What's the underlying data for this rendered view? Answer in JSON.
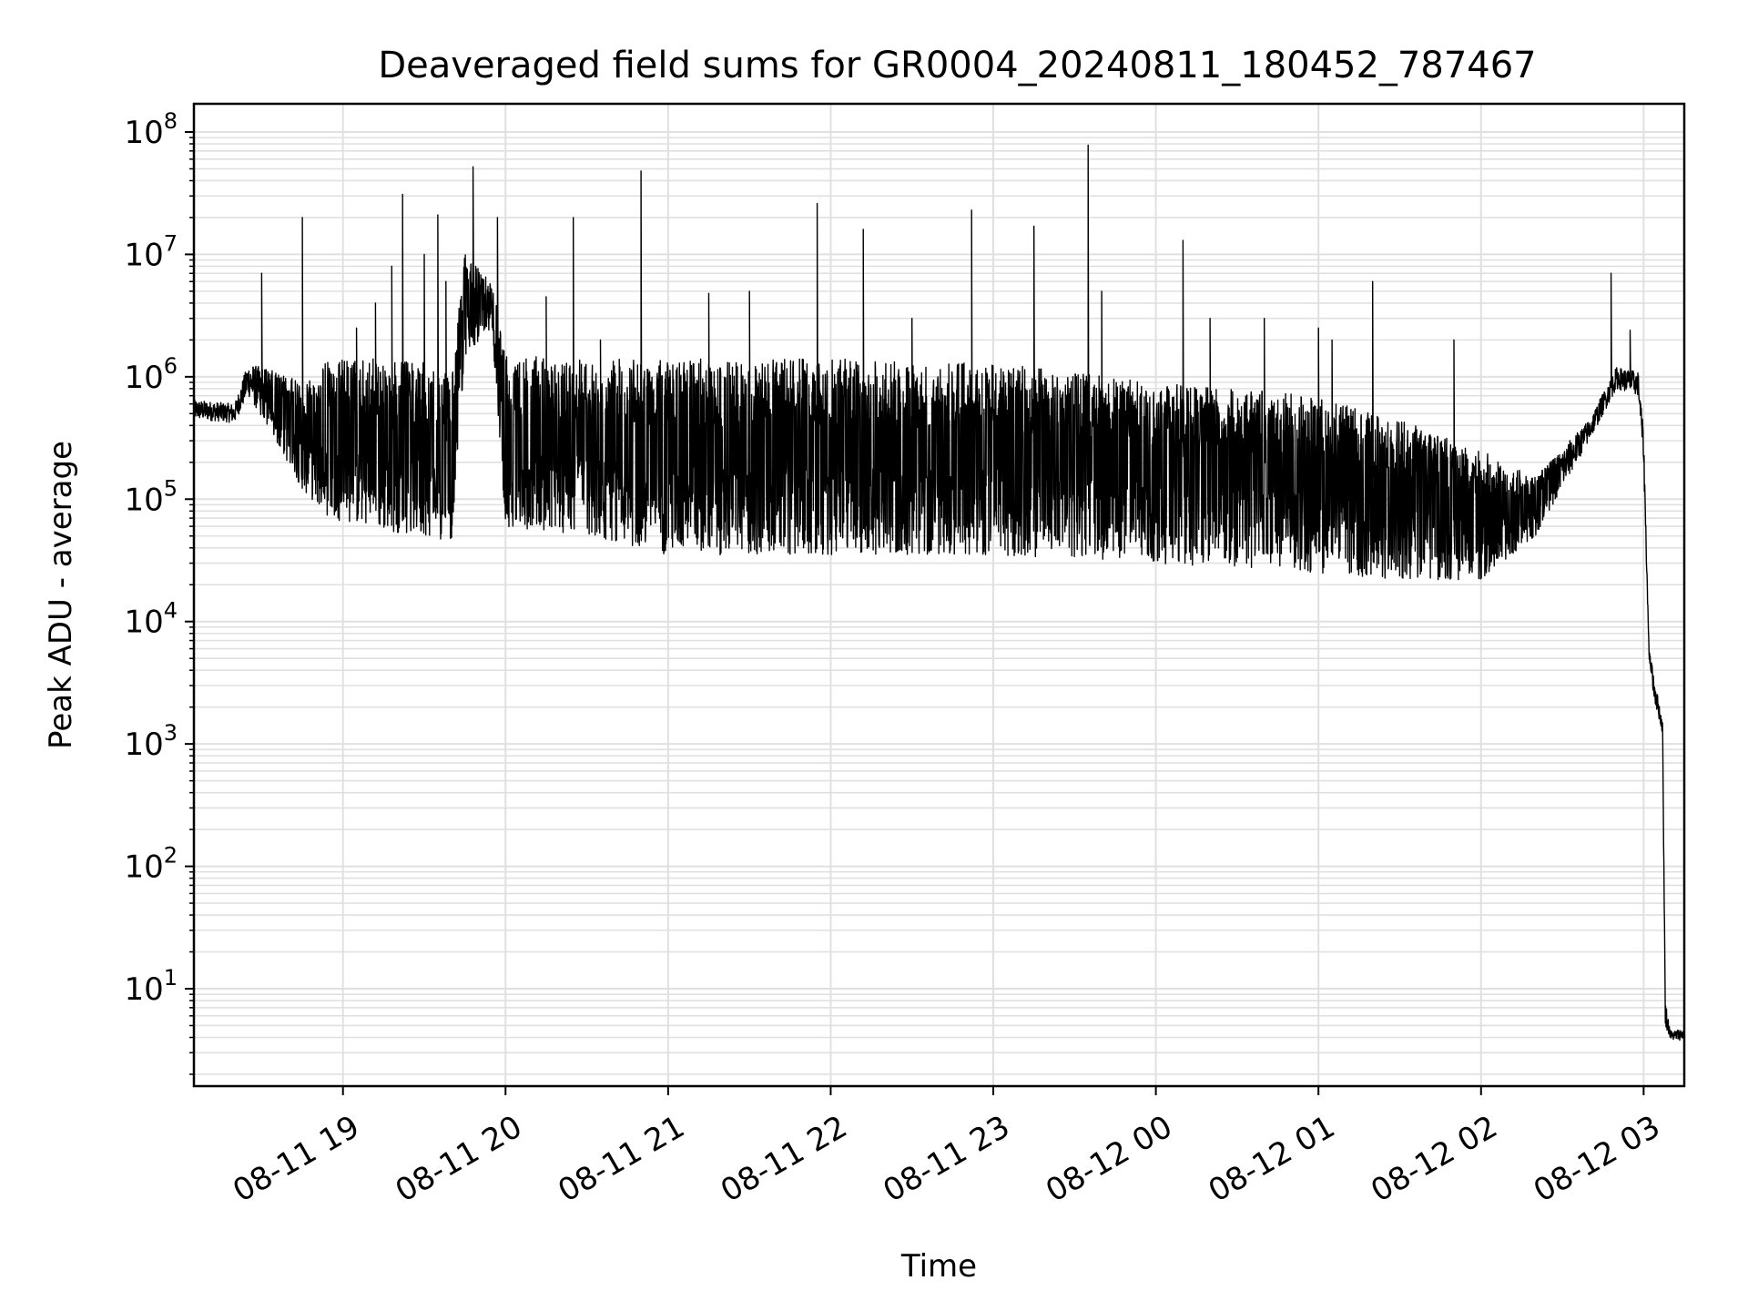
{
  "chart_data": {
    "type": "line",
    "title": "Deaveraged field sums for GR0004_20240811_180452_787467",
    "xlabel": "Time",
    "ylabel": "Peak ADU - average",
    "y_scale": "log",
    "grid": true,
    "line_color": "#000000",
    "grid_color": "#e0e0e0",
    "xlim": [
      "2024-08-11 18:05",
      "2024-08-12 03:15"
    ],
    "ylim": [
      1.6,
      170000000
    ],
    "x_ticks": [
      {
        "value": "2024-08-11 19:00",
        "label": "08-11 19"
      },
      {
        "value": "2024-08-11 20:00",
        "label": "08-11 20"
      },
      {
        "value": "2024-08-11 21:00",
        "label": "08-11 21"
      },
      {
        "value": "2024-08-11 22:00",
        "label": "08-11 22"
      },
      {
        "value": "2024-08-11 23:00",
        "label": "08-11 23"
      },
      {
        "value": "2024-08-12 00:00",
        "label": "08-12 00"
      },
      {
        "value": "2024-08-12 01:00",
        "label": "08-12 01"
      },
      {
        "value": "2024-08-12 02:00",
        "label": "08-12 02"
      },
      {
        "value": "2024-08-12 03:00",
        "label": "08-12 03"
      }
    ],
    "y_ticks": [
      {
        "value": 10,
        "base": "10",
        "exp": "1"
      },
      {
        "value": 100,
        "base": "10",
        "exp": "2"
      },
      {
        "value": 1000,
        "base": "10",
        "exp": "3"
      },
      {
        "value": 10000,
        "base": "10",
        "exp": "4"
      },
      {
        "value": 100000,
        "base": "10",
        "exp": "5"
      },
      {
        "value": 1000000,
        "base": "10",
        "exp": "6"
      },
      {
        "value": 10000000,
        "base": "10",
        "exp": "7"
      },
      {
        "value": 100000000,
        "base": "10",
        "exp": "8"
      }
    ],
    "series": [
      {
        "envelope": [
          {
            "x": "2024-08-11 18:05",
            "low": 450000,
            "high": 650000
          },
          {
            "x": "2024-08-11 18:20",
            "low": 420000,
            "high": 600000
          },
          {
            "x": "2024-08-11 18:25",
            "low": 700000,
            "high": 1300000
          },
          {
            "x": "2024-08-11 18:35",
            "low": 300000,
            "high": 1100000
          },
          {
            "x": "2024-08-11 18:45",
            "low": 120000,
            "high": 900000
          },
          {
            "x": "2024-08-11 18:55",
            "low": 70000,
            "high": 1400000
          },
          {
            "x": "2024-08-11 19:15",
            "low": 55000,
            "high": 1400000
          },
          {
            "x": "2024-08-11 19:30",
            "low": 50000,
            "high": 1300000
          },
          {
            "x": "2024-08-11 19:40",
            "low": 45000,
            "high": 1000000
          },
          {
            "x": "2024-08-11 19:45",
            "low": 1500000,
            "high": 10000000
          },
          {
            "x": "2024-08-11 19:55",
            "low": 2500000,
            "high": 6000000
          },
          {
            "x": "2024-08-11 20:00",
            "low": 60000,
            "high": 1500000
          },
          {
            "x": "2024-08-11 20:30",
            "low": 50000,
            "high": 1400000
          },
          {
            "x": "2024-08-11 21:00",
            "low": 35000,
            "high": 1400000
          },
          {
            "x": "2024-08-11 22:00",
            "low": 35000,
            "high": 1400000
          },
          {
            "x": "2024-08-11 23:00",
            "low": 35000,
            "high": 1300000
          },
          {
            "x": "2024-08-12 00:00",
            "low": 30000,
            "high": 900000
          },
          {
            "x": "2024-08-12 01:00",
            "low": 25000,
            "high": 700000
          },
          {
            "x": "2024-08-12 01:30",
            "low": 22000,
            "high": 450000
          },
          {
            "x": "2024-08-12 02:00",
            "low": 22000,
            "high": 250000
          },
          {
            "x": "2024-08-12 02:20",
            "low": 50000,
            "high": 150000
          },
          {
            "x": "2024-08-12 02:40",
            "low": 300000,
            "high": 450000
          },
          {
            "x": "2024-08-12 02:50",
            "low": 800000,
            "high": 1200000
          },
          {
            "x": "2024-08-12 02:58",
            "low": 700000,
            "high": 1100000
          },
          {
            "x": "2024-08-12 03:00",
            "low": 200000,
            "high": 350000
          },
          {
            "x": "2024-08-12 03:02",
            "low": 5000,
            "high": 6000
          },
          {
            "x": "2024-08-12 03:04",
            "low": 2200,
            "high": 3500
          },
          {
            "x": "2024-08-12 03:06",
            "low": 1500,
            "high": 2000
          },
          {
            "x": "2024-08-12 03:07",
            "low": 1200,
            "high": 1500
          },
          {
            "x": "2024-08-12 03:08",
            "low": 5,
            "high": 8
          },
          {
            "x": "2024-08-12 03:10",
            "low": 3.8,
            "high": 4.5
          },
          {
            "x": "2024-08-12 03:15",
            "low": 3.8,
            "high": 4.8
          }
        ],
        "spikes": [
          {
            "x": "2024-08-11 18:30",
            "y": 7000000
          },
          {
            "x": "2024-08-11 18:45",
            "y": 20000000
          },
          {
            "x": "2024-08-11 19:05",
            "y": 2500000
          },
          {
            "x": "2024-08-11 19:12",
            "y": 4000000
          },
          {
            "x": "2024-08-11 19:18",
            "y": 8000000
          },
          {
            "x": "2024-08-11 19:22",
            "y": 31000000
          },
          {
            "x": "2024-08-11 19:30",
            "y": 10000000
          },
          {
            "x": "2024-08-11 19:35",
            "y": 21000000
          },
          {
            "x": "2024-08-11 19:38",
            "y": 6000000
          },
          {
            "x": "2024-08-11 19:48",
            "y": 52000000
          },
          {
            "x": "2024-08-11 19:57",
            "y": 20000000
          },
          {
            "x": "2024-08-11 20:15",
            "y": 4500000
          },
          {
            "x": "2024-08-11 20:25",
            "y": 20000000
          },
          {
            "x": "2024-08-11 20:35",
            "y": 2000000
          },
          {
            "x": "2024-08-11 20:50",
            "y": 48000000
          },
          {
            "x": "2024-08-11 21:15",
            "y": 4800000
          },
          {
            "x": "2024-08-11 21:30",
            "y": 5000000
          },
          {
            "x": "2024-08-11 21:55",
            "y": 26000000
          },
          {
            "x": "2024-08-11 22:12",
            "y": 16000000
          },
          {
            "x": "2024-08-11 22:30",
            "y": 3000000
          },
          {
            "x": "2024-08-11 22:52",
            "y": 23000000
          },
          {
            "x": "2024-08-11 23:15",
            "y": 17000000
          },
          {
            "x": "2024-08-11 23:35",
            "y": 78000000
          },
          {
            "x": "2024-08-11 23:40",
            "y": 5000000
          },
          {
            "x": "2024-08-12 00:10",
            "y": 13000000
          },
          {
            "x": "2024-08-12 00:20",
            "y": 3000000
          },
          {
            "x": "2024-08-12 00:40",
            "y": 3000000
          },
          {
            "x": "2024-08-12 01:00",
            "y": 2500000
          },
          {
            "x": "2024-08-12 01:05",
            "y": 2000000
          },
          {
            "x": "2024-08-12 01:20",
            "y": 6000000
          },
          {
            "x": "2024-08-12 01:50",
            "y": 2000000
          },
          {
            "x": "2024-08-12 02:48",
            "y": 7000000
          },
          {
            "x": "2024-08-12 02:55",
            "y": 2400000
          }
        ]
      }
    ]
  }
}
